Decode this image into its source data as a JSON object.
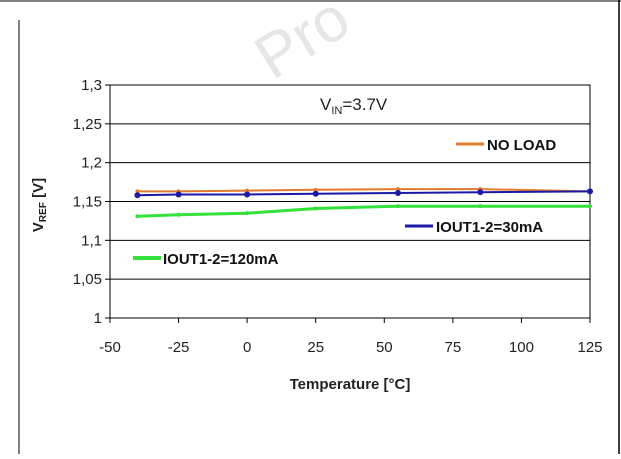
{
  "chart_data": {
    "type": "line",
    "title": "",
    "annotation_main": "V",
    "annotation_sub": "IN",
    "annotation_value": "=3.7V",
    "xlabel": "Temperature [°C]",
    "ylabel_main": "V",
    "ylabel_sub": "REF",
    "ylabel_unit": " [V]",
    "xlim": [
      -50,
      125
    ],
    "ylim": [
      1.0,
      1.3
    ],
    "xticks": [
      -50,
      -25,
      0,
      25,
      50,
      75,
      100,
      125
    ],
    "xtick_labels": [
      "-50",
      "-25",
      "0",
      "25",
      "50",
      "75",
      "100",
      "125"
    ],
    "yticks": [
      1.0,
      1.05,
      1.1,
      1.15,
      1.2,
      1.25,
      1.3
    ],
    "ytick_labels": [
      "1",
      "1,05",
      "1,1",
      "1,15",
      "1,2",
      "1,25",
      "1,3"
    ],
    "grid": true,
    "series": [
      {
        "name": "NO LOAD",
        "color": "#e07a2c",
        "x": [
          -40,
          -25,
          0,
          25,
          55,
          85,
          125
        ],
        "values": [
          1.163,
          1.163,
          1.164,
          1.165,
          1.166,
          1.166,
          1.163
        ]
      },
      {
        "name": "IOUT1-2=30mA",
        "color": "#1a1aa8",
        "x": [
          -40,
          -25,
          0,
          25,
          55,
          85,
          125
        ],
        "values": [
          1.158,
          1.159,
          1.159,
          1.16,
          1.161,
          1.162,
          1.163
        ]
      },
      {
        "name": "IOUT1-2=120mA",
        "color": "#33e13a",
        "x": [
          -40,
          -25,
          0,
          25,
          55,
          85,
          125
        ],
        "values": [
          1.131,
          1.133,
          1.135,
          1.141,
          1.144,
          1.144,
          1.144
        ]
      }
    ]
  },
  "watermark": "Pro"
}
